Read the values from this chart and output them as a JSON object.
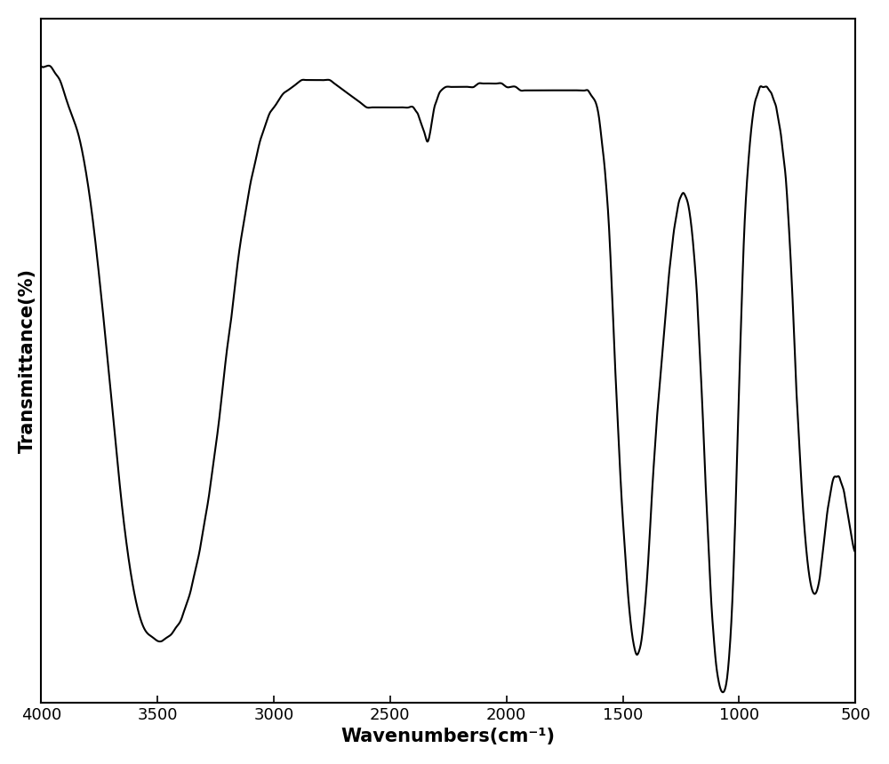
{
  "xlabel": "Wavenumbers(cm⁻¹)",
  "ylabel": "Transmittance(%)",
  "xlim": [
    500,
    4000
  ],
  "xticks": [
    500,
    1000,
    1500,
    2000,
    2500,
    3000,
    3500,
    4000
  ],
  "line_color": "#000000",
  "line_width": 1.5,
  "background_color": "#ffffff",
  "xlabel_fontsize": 15,
  "ylabel_fontsize": 15,
  "tick_fontsize": 13,
  "figsize": [
    10.0,
    8.6
  ],
  "dpi": 100,
  "keypoints": [
    [
      4000,
      93
    ],
    [
      3980,
      93
    ],
    [
      3960,
      93
    ],
    [
      3940,
      92
    ],
    [
      3920,
      91
    ],
    [
      3900,
      89
    ],
    [
      3870,
      86
    ],
    [
      3840,
      83
    ],
    [
      3810,
      78
    ],
    [
      3780,
      71
    ],
    [
      3750,
      62
    ],
    [
      3720,
      52
    ],
    [
      3700,
      45
    ],
    [
      3680,
      38
    ],
    [
      3660,
      31
    ],
    [
      3640,
      25
    ],
    [
      3620,
      20
    ],
    [
      3600,
      16
    ],
    [
      3580,
      13
    ],
    [
      3560,
      11
    ],
    [
      3540,
      10
    ],
    [
      3520,
      9.5
    ],
    [
      3500,
      9
    ],
    [
      3480,
      9
    ],
    [
      3460,
      9.5
    ],
    [
      3440,
      10
    ],
    [
      3420,
      11
    ],
    [
      3400,
      12
    ],
    [
      3380,
      14
    ],
    [
      3360,
      16
    ],
    [
      3340,
      19
    ],
    [
      3320,
      22
    ],
    [
      3300,
      26
    ],
    [
      3280,
      30
    ],
    [
      3260,
      35
    ],
    [
      3240,
      40
    ],
    [
      3220,
      46
    ],
    [
      3200,
      52
    ],
    [
      3180,
      57
    ],
    [
      3160,
      63
    ],
    [
      3140,
      68
    ],
    [
      3120,
      72
    ],
    [
      3100,
      76
    ],
    [
      3080,
      79
    ],
    [
      3060,
      82
    ],
    [
      3040,
      84
    ],
    [
      3020,
      86
    ],
    [
      3000,
      87
    ],
    [
      2980,
      88
    ],
    [
      2960,
      89
    ],
    [
      2940,
      89.5
    ],
    [
      2920,
      90
    ],
    [
      2900,
      90.5
    ],
    [
      2880,
      91
    ],
    [
      2860,
      91
    ],
    [
      2840,
      91
    ],
    [
      2820,
      91
    ],
    [
      2800,
      91
    ],
    [
      2780,
      91
    ],
    [
      2760,
      91
    ],
    [
      2740,
      90.5
    ],
    [
      2720,
      90
    ],
    [
      2700,
      89.5
    ],
    [
      2680,
      89
    ],
    [
      2660,
      88.5
    ],
    [
      2640,
      88
    ],
    [
      2620,
      87.5
    ],
    [
      2600,
      87
    ],
    [
      2580,
      87
    ],
    [
      2560,
      87
    ],
    [
      2540,
      87
    ],
    [
      2520,
      87
    ],
    [
      2500,
      87
    ],
    [
      2480,
      87
    ],
    [
      2460,
      87
    ],
    [
      2440,
      87
    ],
    [
      2420,
      87
    ],
    [
      2400,
      87
    ],
    [
      2390,
      86.5
    ],
    [
      2380,
      86
    ],
    [
      2370,
      85
    ],
    [
      2360,
      84
    ],
    [
      2350,
      83
    ],
    [
      2340,
      82
    ],
    [
      2330,
      83
    ],
    [
      2320,
      85
    ],
    [
      2310,
      87
    ],
    [
      2300,
      88
    ],
    [
      2290,
      89
    ],
    [
      2280,
      89.5
    ],
    [
      2260,
      90
    ],
    [
      2240,
      90
    ],
    [
      2220,
      90
    ],
    [
      2200,
      90
    ],
    [
      2180,
      90
    ],
    [
      2160,
      90
    ],
    [
      2140,
      90
    ],
    [
      2120,
      90.5
    ],
    [
      2100,
      90.5
    ],
    [
      2080,
      90.5
    ],
    [
      2060,
      90.5
    ],
    [
      2040,
      90.5
    ],
    [
      2020,
      90.5
    ],
    [
      2000,
      90
    ],
    [
      1980,
      90
    ],
    [
      1960,
      90
    ],
    [
      1940,
      89.5
    ],
    [
      1920,
      89.5
    ],
    [
      1900,
      89.5
    ],
    [
      1880,
      89.5
    ],
    [
      1860,
      89.5
    ],
    [
      1840,
      89.5
    ],
    [
      1820,
      89.5
    ],
    [
      1800,
      89.5
    ],
    [
      1780,
      89.5
    ],
    [
      1760,
      89.5
    ],
    [
      1740,
      89.5
    ],
    [
      1720,
      89.5
    ],
    [
      1700,
      89.5
    ],
    [
      1680,
      89.5
    ],
    [
      1660,
      89.5
    ],
    [
      1650,
      89.5
    ],
    [
      1640,
      89
    ],
    [
      1630,
      88.5
    ],
    [
      1620,
      88
    ],
    [
      1610,
      87
    ],
    [
      1600,
      85
    ],
    [
      1590,
      82
    ],
    [
      1580,
      79
    ],
    [
      1570,
      75
    ],
    [
      1560,
      70
    ],
    [
      1550,
      63
    ],
    [
      1540,
      55
    ],
    [
      1530,
      47
    ],
    [
      1520,
      40
    ],
    [
      1510,
      33
    ],
    [
      1500,
      27
    ],
    [
      1490,
      22
    ],
    [
      1480,
      17
    ],
    [
      1470,
      13
    ],
    [
      1460,
      10
    ],
    [
      1450,
      8
    ],
    [
      1440,
      7
    ],
    [
      1430,
      7.5
    ],
    [
      1420,
      9
    ],
    [
      1410,
      12
    ],
    [
      1400,
      16
    ],
    [
      1390,
      21
    ],
    [
      1380,
      27
    ],
    [
      1370,
      33
    ],
    [
      1360,
      38
    ],
    [
      1350,
      43
    ],
    [
      1340,
      47
    ],
    [
      1330,
      51
    ],
    [
      1320,
      55
    ],
    [
      1310,
      59
    ],
    [
      1300,
      63
    ],
    [
      1290,
      66
    ],
    [
      1280,
      69
    ],
    [
      1270,
      71
    ],
    [
      1260,
      73
    ],
    [
      1250,
      74
    ],
    [
      1240,
      74.5
    ],
    [
      1230,
      74
    ],
    [
      1220,
      73
    ],
    [
      1210,
      71
    ],
    [
      1200,
      68
    ],
    [
      1190,
      64
    ],
    [
      1180,
      59
    ],
    [
      1170,
      52
    ],
    [
      1160,
      45
    ],
    [
      1150,
      37
    ],
    [
      1140,
      29
    ],
    [
      1130,
      22
    ],
    [
      1120,
      15
    ],
    [
      1110,
      10
    ],
    [
      1100,
      6
    ],
    [
      1090,
      3.5
    ],
    [
      1080,
      2
    ],
    [
      1070,
      1.5
    ],
    [
      1060,
      2
    ],
    [
      1050,
      4
    ],
    [
      1040,
      8
    ],
    [
      1030,
      14
    ],
    [
      1020,
      23
    ],
    [
      1010,
      34
    ],
    [
      1000,
      46
    ],
    [
      990,
      57
    ],
    [
      980,
      67
    ],
    [
      970,
      74
    ],
    [
      960,
      79
    ],
    [
      950,
      83
    ],
    [
      940,
      86
    ],
    [
      930,
      88
    ],
    [
      920,
      89
    ],
    [
      910,
      90
    ],
    [
      900,
      90
    ],
    [
      890,
      90
    ],
    [
      880,
      90
    ],
    [
      870,
      89.5
    ],
    [
      860,
      89
    ],
    [
      850,
      88
    ],
    [
      840,
      87
    ],
    [
      830,
      85
    ],
    [
      820,
      83
    ],
    [
      810,
      80
    ],
    [
      800,
      77
    ],
    [
      790,
      72
    ],
    [
      780,
      66
    ],
    [
      770,
      59
    ],
    [
      760,
      51
    ],
    [
      750,
      43
    ],
    [
      740,
      37
    ],
    [
      730,
      31
    ],
    [
      720,
      26
    ],
    [
      710,
      22
    ],
    [
      700,
      19
    ],
    [
      690,
      17
    ],
    [
      680,
      16
    ],
    [
      670,
      16
    ],
    [
      660,
      17
    ],
    [
      650,
      19
    ],
    [
      640,
      22
    ],
    [
      630,
      25
    ],
    [
      620,
      28
    ],
    [
      610,
      30
    ],
    [
      600,
      32
    ],
    [
      590,
      33
    ],
    [
      580,
      33
    ],
    [
      570,
      33
    ],
    [
      560,
      32
    ],
    [
      550,
      31
    ],
    [
      540,
      29
    ],
    [
      530,
      27
    ],
    [
      520,
      25
    ],
    [
      510,
      23
    ],
    [
      500,
      22
    ]
  ]
}
